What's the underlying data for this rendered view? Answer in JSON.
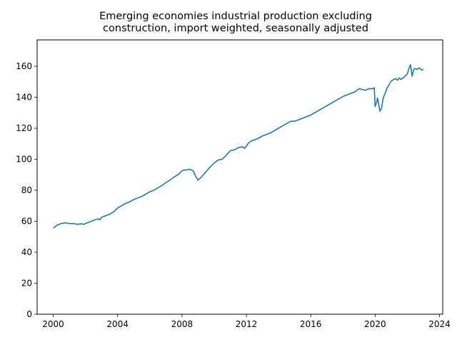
{
  "chart_data": {
    "type": "line",
    "title_lines": [
      "Emerging economies industrial production excluding",
      "construction, import weighted, seasonally adjusted"
    ],
    "xlabel": "",
    "ylabel": "",
    "xlim": [
      1999.0,
      2024.2
    ],
    "ylim": [
      0,
      177
    ],
    "xticks": [
      2000,
      2004,
      2008,
      2012,
      2016,
      2020,
      2024
    ],
    "yticks": [
      0,
      20,
      40,
      60,
      80,
      100,
      120,
      140,
      160
    ],
    "grid": false,
    "line_color": "#1f77b4",
    "series": [
      {
        "x": [
          2000.0,
          2000.25,
          2000.5,
          2000.75,
          2001.0,
          2001.25,
          2001.5,
          2001.75,
          2001.9,
          2002.0,
          2002.25,
          2002.5,
          2002.75,
          2002.9,
          2003.0,
          2003.25,
          2003.5,
          2003.75,
          2004.0,
          2004.25,
          2004.5,
          2004.75,
          2005.0,
          2005.25,
          2005.5,
          2005.75,
          2006.0,
          2006.25,
          2006.5,
          2006.75,
          2007.0,
          2007.25,
          2007.5,
          2007.75,
          2008.0,
          2008.1,
          2008.25,
          2008.5,
          2008.7,
          2008.85,
          2009.0,
          2009.1,
          2009.25,
          2009.5,
          2009.75,
          2010.0,
          2010.25,
          2010.5,
          2010.75,
          2011.0,
          2011.25,
          2011.5,
          2011.75,
          2011.9,
          2012.0,
          2012.1,
          2012.25,
          2012.5,
          2012.75,
          2013.0,
          2013.25,
          2013.5,
          2013.75,
          2014.0,
          2014.25,
          2014.5,
          2014.75,
          2015.0,
          2015.25,
          2015.5,
          2015.75,
          2016.0,
          2016.25,
          2016.5,
          2016.75,
          2017.0,
          2017.25,
          2017.5,
          2017.75,
          2018.0,
          2018.25,
          2018.5,
          2018.75,
          2019.0,
          2019.2,
          2019.4,
          2019.6,
          2019.8,
          2019.95,
          2020.0,
          2020.1,
          2020.15,
          2020.3,
          2020.4,
          2020.5,
          2020.6,
          2020.75,
          2021.0,
          2021.25,
          2021.4,
          2021.5,
          2021.6,
          2021.75,
          2022.0,
          2022.1,
          2022.2,
          2022.3,
          2022.4,
          2022.5,
          2022.6,
          2022.75,
          2022.9,
          2023.0
        ],
        "values": [
          55.5,
          57.5,
          58.5,
          59.0,
          58.5,
          58.5,
          58.0,
          58.3,
          58.0,
          58.5,
          59.5,
          60.5,
          61.5,
          61.0,
          62.5,
          63.5,
          64.5,
          66.0,
          68.5,
          70.0,
          71.5,
          72.5,
          74.0,
          75.0,
          76.0,
          77.5,
          79.0,
          80.0,
          81.5,
          83.0,
          85.0,
          86.5,
          88.5,
          90.0,
          92.5,
          93.0,
          93.0,
          93.5,
          92.5,
          89.0,
          86.5,
          87.5,
          89.0,
          92.0,
          95.0,
          97.5,
          99.5,
          100.0,
          102.5,
          105.5,
          106.0,
          107.5,
          108.0,
          107.0,
          108.5,
          110.0,
          111.5,
          112.5,
          113.5,
          115.0,
          116.0,
          117.0,
          118.5,
          120.0,
          121.5,
          123.0,
          124.5,
          124.5,
          125.5,
          126.5,
          127.5,
          128.5,
          130.0,
          131.5,
          133.0,
          134.5,
          136.0,
          137.5,
          139.0,
          140.5,
          141.5,
          142.5,
          143.5,
          145.5,
          145.0,
          144.5,
          145.5,
          145.5,
          146.0,
          134.0,
          137.0,
          139.5,
          131.0,
          133.0,
          139.5,
          142.0,
          146.0,
          150.5,
          152.0,
          151.0,
          152.5,
          151.5,
          152.5,
          155.0,
          158.5,
          161.0,
          153.5,
          158.0,
          158.5,
          158.0,
          159.0,
          157.5,
          158.0
        ]
      }
    ]
  }
}
